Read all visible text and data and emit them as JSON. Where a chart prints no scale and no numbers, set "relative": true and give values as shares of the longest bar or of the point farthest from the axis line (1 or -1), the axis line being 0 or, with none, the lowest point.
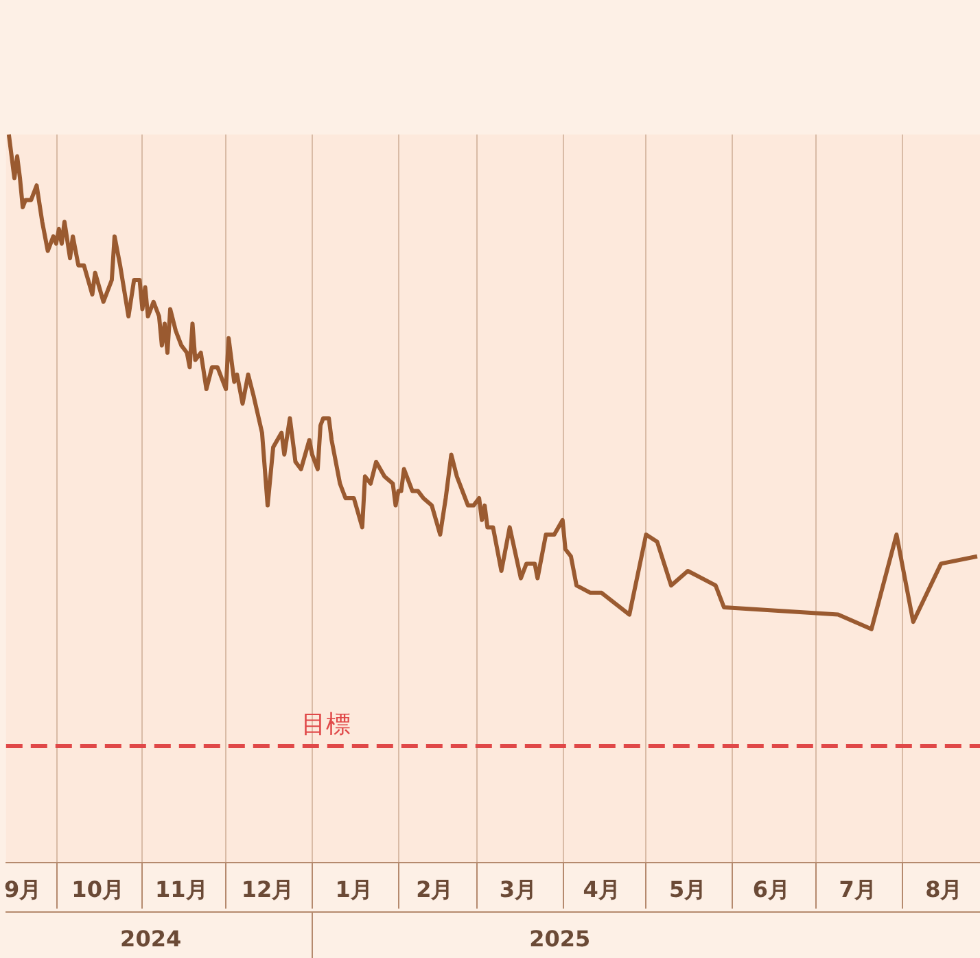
{
  "chart_data": {
    "type": "line",
    "relative": true,
    "marker": "none",
    "grid": "x",
    "xlim": [
      "2024-09-13",
      "2025-08-29"
    ],
    "xticks": [
      {
        "value": "2024-09-19",
        "label": "9月"
      },
      {
        "value": "2024-10-01",
        "label": null
      },
      {
        "value": "2024-10-16",
        "label": "10月"
      },
      {
        "value": "2024-11-01",
        "label": null
      },
      {
        "value": "2024-11-15",
        "label": "11月"
      },
      {
        "value": "2024-12-01",
        "label": null
      },
      {
        "value": "2024-12-16",
        "label": "12月"
      },
      {
        "value": "2025-01-01",
        "label": null
      },
      {
        "value": "2025-01-16",
        "label": "1月"
      },
      {
        "value": "2025-02-01",
        "label": null
      },
      {
        "value": "2025-02-14",
        "label": "2月"
      },
      {
        "value": "2025-03-01",
        "label": null
      },
      {
        "value": "2025-03-16",
        "label": "3月"
      },
      {
        "value": "2025-04-01",
        "label": null
      },
      {
        "value": "2025-04-15",
        "label": "4月"
      },
      {
        "value": "2025-05-01",
        "label": null
      },
      {
        "value": "2025-05-16",
        "label": "5月"
      },
      {
        "value": "2025-06-01",
        "label": null
      },
      {
        "value": "2025-06-15",
        "label": "6月"
      },
      {
        "value": "2025-07-01",
        "label": null
      },
      {
        "value": "2025-07-16",
        "label": "7月"
      },
      {
        "value": "2025-08-01",
        "label": null
      },
      {
        "value": "2025-08-16",
        "label": "8月"
      }
    ],
    "x2lim": [
      "2024-09-13",
      "2025-08-29"
    ],
    "x2ticks": [
      {
        "value": "2024-11-04",
        "label": "2024"
      },
      {
        "value": "2025-01-01",
        "label": null
      },
      {
        "value": "2025-03-31",
        "label": "2025"
      }
    ],
    "ref_lines": [
      {
        "axis": "y",
        "value": 0.16,
        "label": "目標",
        "color": "#e04848",
        "line_style": "dashed"
      }
    ],
    "series": [
      {
        "color": "#9a5a30",
        "x": [
          "2024-09-14",
          "2024-09-16",
          "2024-09-17",
          "2024-09-18",
          "2024-09-19",
          "2024-09-20",
          "2024-09-22",
          "2024-09-24",
          "2024-09-26",
          "2024-09-28",
          "2024-09-30",
          "2024-10-01",
          "2024-10-02",
          "2024-10-03",
          "2024-10-04",
          "2024-10-06",
          "2024-10-07",
          "2024-10-09",
          "2024-10-11",
          "2024-10-14",
          "2024-10-15",
          "2024-10-18",
          "2024-10-21",
          "2024-10-22",
          "2024-10-24",
          "2024-10-27",
          "2024-10-29",
          "2024-10-31",
          "2024-11-01",
          "2024-11-02",
          "2024-11-03",
          "2024-11-05",
          "2024-11-07",
          "2024-11-08",
          "2024-11-09",
          "2024-11-10",
          "2024-11-11",
          "2024-11-13",
          "2024-11-15",
          "2024-11-17",
          "2024-11-18",
          "2024-11-19",
          "2024-11-20",
          "2024-11-22",
          "2024-11-24",
          "2024-11-26",
          "2024-11-28",
          "2024-12-01",
          "2024-12-02",
          "2024-12-04",
          "2024-12-05",
          "2024-12-07",
          "2024-12-09",
          "2024-12-11",
          "2024-12-14",
          "2024-12-16",
          "2024-12-18",
          "2024-12-21",
          "2024-12-22",
          "2024-12-24",
          "2024-12-26",
          "2024-12-28",
          "2024-12-31",
          "2025-01-01",
          "2025-01-03",
          "2025-01-04",
          "2025-01-05",
          "2025-01-07",
          "2025-01-08",
          "2025-01-11",
          "2025-01-13",
          "2025-01-16",
          "2025-01-19",
          "2025-01-20",
          "2025-01-22",
          "2025-01-24",
          "2025-01-27",
          "2025-01-30",
          "2025-01-31",
          "2025-02-01",
          "2025-02-02",
          "2025-02-03",
          "2025-02-06",
          "2025-02-08",
          "2025-02-10",
          "2025-02-13",
          "2025-02-16",
          "2025-02-18",
          "2025-02-20",
          "2025-02-22",
          "2025-02-24",
          "2025-02-26",
          "2025-02-28",
          "2025-03-02",
          "2025-03-03",
          "2025-03-04",
          "2025-03-05",
          "2025-03-07",
          "2025-03-10",
          "2025-03-13",
          "2025-03-17",
          "2025-03-19",
          "2025-03-22",
          "2025-03-23",
          "2025-03-26",
          "2025-03-29",
          "2025-04-01",
          "2025-04-02",
          "2025-04-04",
          "2025-04-06",
          "2025-04-11",
          "2025-04-15",
          "2025-04-25",
          "2025-05-01",
          "2025-05-05",
          "2025-05-10",
          "2025-05-16",
          "2025-05-26",
          "2025-05-29",
          "2025-07-09",
          "2025-07-21",
          "2025-07-30",
          "2025-08-05",
          "2025-08-15",
          "2025-08-28"
        ],
        "values": [
          1.0,
          0.94,
          0.97,
          0.94,
          0.9,
          0.91,
          0.91,
          0.93,
          0.88,
          0.84,
          0.86,
          0.85,
          0.87,
          0.85,
          0.88,
          0.83,
          0.86,
          0.82,
          0.82,
          0.78,
          0.81,
          0.77,
          0.8,
          0.86,
          0.82,
          0.75,
          0.8,
          0.8,
          0.76,
          0.79,
          0.75,
          0.77,
          0.75,
          0.71,
          0.74,
          0.7,
          0.76,
          0.73,
          0.71,
          0.7,
          0.68,
          0.74,
          0.69,
          0.7,
          0.65,
          0.68,
          0.68,
          0.65,
          0.72,
          0.66,
          0.67,
          0.63,
          0.67,
          0.64,
          0.59,
          0.49,
          0.57,
          0.59,
          0.56,
          0.61,
          0.55,
          0.54,
          0.58,
          0.56,
          0.54,
          0.6,
          0.61,
          0.61,
          0.58,
          0.52,
          0.5,
          0.5,
          0.46,
          0.53,
          0.52,
          0.55,
          0.53,
          0.52,
          0.49,
          0.51,
          0.51,
          0.54,
          0.51,
          0.51,
          0.5,
          0.49,
          0.45,
          0.5,
          0.56,
          0.53,
          0.51,
          0.49,
          0.49,
          0.5,
          0.47,
          0.49,
          0.46,
          0.46,
          0.4,
          0.46,
          0.39,
          0.41,
          0.41,
          0.39,
          0.45,
          0.45,
          0.47,
          0.43,
          0.42,
          0.38,
          0.37,
          0.37,
          0.34,
          0.45,
          0.44,
          0.38,
          0.4,
          0.38,
          0.35,
          0.34,
          0.32,
          0.45,
          0.33,
          0.41,
          0.42
        ]
      }
    ]
  }
}
